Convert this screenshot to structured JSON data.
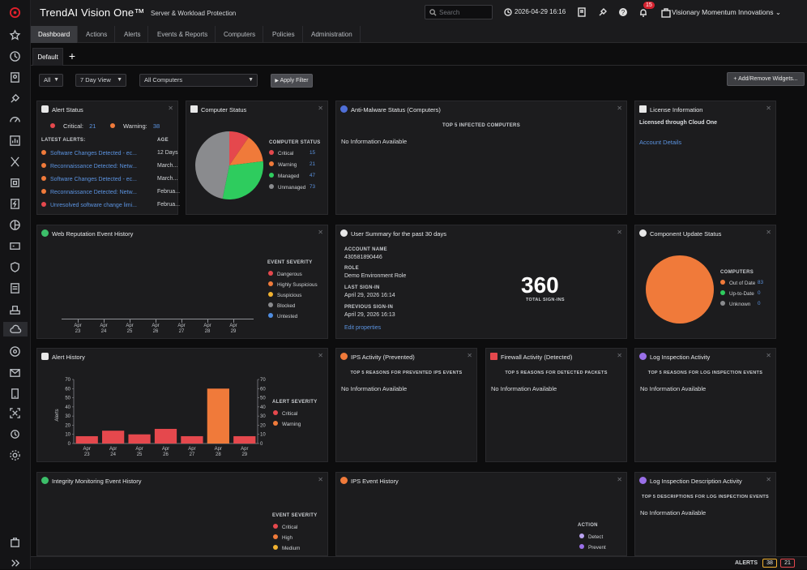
{
  "app": {
    "title": "TrendAI Vision One™",
    "subtitle": "Server & Workload Protection",
    "search_placeholder": "Search",
    "datetime": "2026-04-29 16:16",
    "notifications": "15",
    "org": "Visionary Momentum Innovations ⌄"
  },
  "nav": {
    "tabs": [
      "Dashboard",
      "Actions",
      "Alerts",
      "Events & Reports",
      "Computers",
      "Policies",
      "Administration"
    ],
    "active": "Dashboard"
  },
  "dash": {
    "tab": "Default",
    "add": "+"
  },
  "filters": {
    "scope": "All",
    "period": "7 Day View",
    "computers": "All Computers",
    "apply": "Apply Filter",
    "add_remove": "Add/Remove Widgets..."
  },
  "rail_icons": [
    "logo-icon",
    "star-icon",
    "clock-icon",
    "map-pin-icon",
    "satellite-icon",
    "gauge-icon",
    "chart-box-icon",
    "x-icon",
    "cube-icon",
    "flash-icon",
    "aperture-icon",
    "server-icon",
    "shield-icon",
    "sliders-icon",
    "inbox-icon",
    "cloud-icon",
    "target-icon",
    "email-icon",
    "device-icon",
    "scan-icon",
    "settings-cog-icon",
    "gear-icon",
    "cart-icon",
    "expand-icon"
  ],
  "alert_status": {
    "title": "Alert Status",
    "critical_label": "Critical:",
    "critical": "21",
    "warning_label": "Warning:",
    "warning": "38",
    "latest_label": "LATEST ALERTS:",
    "age_label": "AGE",
    "alerts": [
      {
        "text": "Software Changes Detected - ec...",
        "age": "12 Days",
        "color": "#f07a3a"
      },
      {
        "text": "Reconnaissance Detected: Netw...",
        "age": "March...",
        "color": "#f07a3a"
      },
      {
        "text": "Software Changes Detected - ec...",
        "age": "March...",
        "color": "#f07a3a"
      },
      {
        "text": "Reconnaissance Detected: Netw...",
        "age": "Februa...",
        "color": "#f07a3a"
      },
      {
        "text": "Unresolved software change limi...",
        "age": "Februa...",
        "color": "#e5484d"
      }
    ]
  },
  "computer_status": {
    "title": "Computer Status",
    "legend_title": "COMPUTER STATUS",
    "items": [
      {
        "label": "Critical",
        "value": 15,
        "color": "#e5484d"
      },
      {
        "label": "Warning",
        "value": 21,
        "color": "#f07a3a"
      },
      {
        "label": "Managed",
        "value": 47,
        "color": "#2ecc5e"
      },
      {
        "label": "Unmanaged",
        "value": 73,
        "color": "#8a8b8e"
      }
    ]
  },
  "anti_malware": {
    "title": "Anti-Malware Status (Computers)",
    "sub": "TOP 5 INFECTED COMPUTERS",
    "empty": "No Information Available"
  },
  "license": {
    "title": "License Information",
    "text": "Licensed through Cloud One",
    "link": "Account Details"
  },
  "web_rep": {
    "title": "Web Reputation Event History",
    "legend_title": "EVENT SEVERITY",
    "legend": [
      {
        "label": "Dangerous",
        "color": "#e5484d"
      },
      {
        "label": "Highly Suspicious",
        "color": "#f07a3a"
      },
      {
        "label": "Suspicious",
        "color": "#f2b230"
      },
      {
        "label": "Blocked",
        "color": "#8a8b8e"
      },
      {
        "label": "Untested",
        "color": "#4f8de0"
      }
    ],
    "days": [
      "Apr\n23",
      "Apr\n24",
      "Apr\n25",
      "Apr\n26",
      "Apr\n27",
      "Apr\n28",
      "Apr\n29"
    ]
  },
  "user_summary": {
    "title": "User Summary for the past 30 days",
    "account_name_label": "ACCOUNT NAME",
    "account_name": "430581890446",
    "role_label": "ROLE",
    "role": "Demo Environment Role",
    "last_label": "LAST SIGN-IN",
    "last": "April 29, 2026 16:14",
    "prev_label": "PREVIOUS SIGN-IN",
    "prev": "April 29, 2026 16:13",
    "link": "Edit properties",
    "total": "360",
    "total_label": "TOTAL SIGN-INS"
  },
  "component": {
    "title": "Component Update Status",
    "legend_title": "COMPUTERS",
    "items": [
      {
        "label": "Out of Date",
        "value": "83",
        "color": "#f07a3a"
      },
      {
        "label": "Up-to-Date",
        "value": "0",
        "color": "#2ecc5e"
      },
      {
        "label": "Unknown",
        "value": "0",
        "color": "#8a8b8e"
      }
    ]
  },
  "alert_history": {
    "title": "Alert History",
    "legend_title": "ALERT SEVERITY",
    "legend": [
      {
        "label": "Critical",
        "color": "#e5484d"
      },
      {
        "label": "Warning",
        "color": "#f07a3a"
      }
    ],
    "ylabel": "Alerts"
  },
  "ips_prevented": {
    "title": "IPS Activity (Prevented)",
    "sub": "TOP 5 REASONS FOR PREVENTED IPS EVENTS",
    "empty": "No Information Available"
  },
  "firewall": {
    "title": "Firewall Activity (Detected)",
    "sub": "TOP 5 REASONS FOR DETECTED PACKETS",
    "empty": "No Information Available"
  },
  "log_inspection": {
    "title": "Log Inspection Activity",
    "sub": "TOP 5 REASONS FOR LOG INSPECTION EVENTS",
    "empty": "No Information Available"
  },
  "integrity": {
    "title": "Integrity Monitoring Event History",
    "legend_title": "EVENT SEVERITY",
    "legend": [
      {
        "label": "Critical",
        "color": "#e5484d"
      },
      {
        "label": "High",
        "color": "#f07a3a"
      },
      {
        "label": "Medium",
        "color": "#f2b230"
      }
    ]
  },
  "ips_history": {
    "title": "IPS Event History",
    "legend_title": "ACTION",
    "legend": [
      {
        "label": "Detect",
        "color": "#b9a3f0"
      },
      {
        "label": "Prevent",
        "color": "#9a6fe8"
      }
    ]
  },
  "log_desc": {
    "title": "Log Inspection Description Activity",
    "sub": "TOP 5 DESCRIPTIONS FOR LOG INSPECTION EVENTS",
    "empty": "No Information Available"
  },
  "status": {
    "label": "ALERTS",
    "warning": "38",
    "critical": "21"
  },
  "chart_data": [
    {
      "type": "bar",
      "title": "Alert History",
      "categories": [
        "Apr 23",
        "Apr 24",
        "Apr 25",
        "Apr 26",
        "Apr 27",
        "Apr 28",
        "Apr 29"
      ],
      "ylabel": "Alerts",
      "ylim": [
        0,
        70
      ],
      "yticks": [
        0,
        10,
        20,
        30,
        40,
        50,
        60,
        70
      ],
      "series": [
        {
          "name": "Critical",
          "values": [
            8,
            14,
            10,
            16,
            8,
            0,
            8
          ]
        },
        {
          "name": "Warning",
          "values": [
            0,
            0,
            0,
            0,
            0,
            60,
            0
          ]
        }
      ]
    },
    {
      "type": "pie",
      "title": "Computer Status",
      "categories": [
        "Critical",
        "Warning",
        "Managed",
        "Unmanaged"
      ],
      "values": [
        15,
        21,
        47,
        73
      ]
    },
    {
      "type": "pie",
      "title": "Component Update Status",
      "categories": [
        "Out of Date",
        "Up-to-Date",
        "Unknown"
      ],
      "values": [
        83,
        0,
        0
      ]
    }
  ]
}
